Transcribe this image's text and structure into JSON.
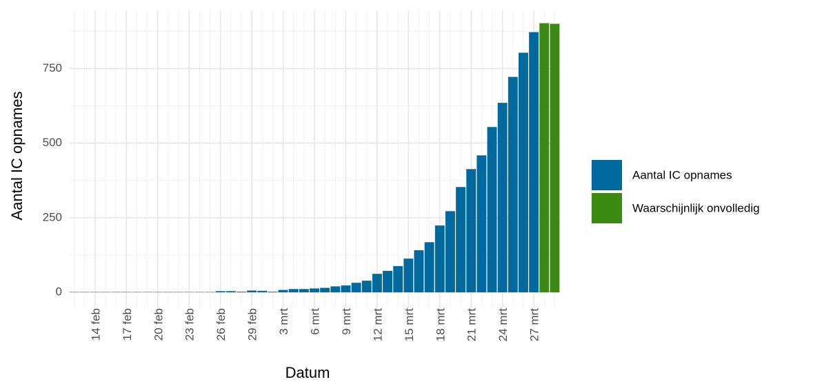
{
  "chart_data": {
    "type": "bar",
    "x_label": "Datum",
    "y_label": "Aantal IC opnames",
    "categories": [
      null,
      null,
      "14 feb",
      null,
      null,
      "17 feb",
      null,
      null,
      "20 feb",
      null,
      null,
      "23 feb",
      null,
      null,
      "26 feb",
      null,
      null,
      "29 feb",
      null,
      null,
      "3 mrt",
      null,
      null,
      "6 mrt",
      null,
      null,
      "9 mrt",
      null,
      null,
      "12 mrt",
      null,
      null,
      "15 mrt",
      null,
      null,
      "18 mrt",
      null,
      null,
      "21 mrt",
      null,
      null,
      "24 mrt",
      null,
      null,
      "27 mrt",
      null,
      null
    ],
    "series": [
      {
        "name": "Aantal IC opnames",
        "color": "#006a9e",
        "values": [
          1,
          1,
          1,
          1,
          1,
          1,
          1,
          1,
          1,
          1,
          1,
          1,
          1,
          1,
          4,
          4,
          2,
          6,
          5,
          2,
          8,
          11,
          11,
          13,
          15,
          20,
          23,
          32,
          39,
          62,
          72,
          88,
          113,
          141,
          168,
          224,
          272,
          353,
          413,
          459,
          554,
          635,
          722,
          803,
          872,
          null,
          null
        ]
      },
      {
        "name": "Waarschijnlijk onvolledig",
        "color": "#3c8a14",
        "values": [
          null,
          null,
          null,
          null,
          null,
          null,
          null,
          null,
          null,
          null,
          null,
          null,
          null,
          null,
          null,
          null,
          null,
          null,
          null,
          null,
          null,
          null,
          null,
          null,
          null,
          null,
          null,
          null,
          null,
          null,
          null,
          null,
          null,
          null,
          null,
          null,
          null,
          null,
          null,
          null,
          null,
          null,
          null,
          null,
          null,
          902,
          900
        ]
      }
    ],
    "ylim": [
      -30,
      945
    ],
    "yticks": [
      0,
      250,
      500,
      750
    ],
    "grid": true,
    "legend": "right"
  }
}
